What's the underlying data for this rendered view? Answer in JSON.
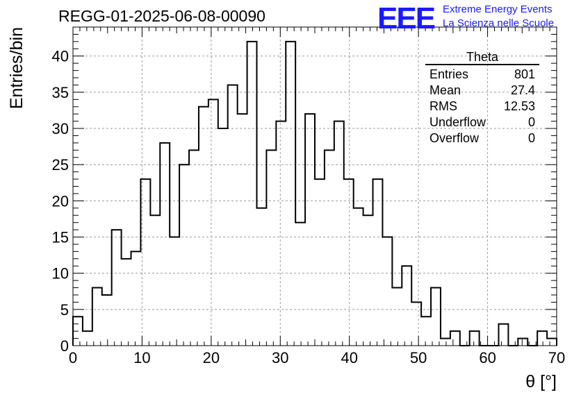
{
  "chart_data": {
    "type": "bar",
    "title": "REGG-01-2025-06-08-00090",
    "xlabel": "θ [°]",
    "ylabel": "Entries/bin",
    "xlim": [
      0,
      70
    ],
    "ylim": [
      0,
      44
    ],
    "bin_width": 1.4,
    "x_ticks": [
      "0",
      "10",
      "20",
      "30",
      "40",
      "50",
      "60",
      "70"
    ],
    "y_ticks": [
      "0",
      "5",
      "10",
      "15",
      "20",
      "25",
      "30",
      "35",
      "40"
    ],
    "values": [
      4,
      2,
      8,
      7,
      16,
      12,
      13,
      23,
      18,
      28,
      15,
      25,
      27,
      33,
      34,
      30,
      36,
      32,
      42,
      19,
      27,
      31,
      42,
      17,
      32,
      23,
      27,
      31,
      23,
      19,
      18,
      23,
      15,
      8,
      11,
      6,
      4,
      8,
      1,
      2,
      0,
      2,
      0,
      0,
      3,
      0,
      1,
      0,
      2,
      1
    ],
    "grid": true,
    "line_color": "#000000"
  },
  "stats": {
    "name": "Theta",
    "rows": [
      {
        "label": "Entries",
        "value": "801"
      },
      {
        "label": "Mean",
        "value": "27.4"
      },
      {
        "label": "RMS",
        "value": "12.53"
      },
      {
        "label": "Underflow",
        "value": "0"
      },
      {
        "label": "Overflow",
        "value": "0"
      }
    ]
  },
  "logo": {
    "mark": "EEE",
    "line1": "Extreme Energy Events",
    "line2": "La Scienza nelle Scuole",
    "color": "#1a1aff"
  }
}
